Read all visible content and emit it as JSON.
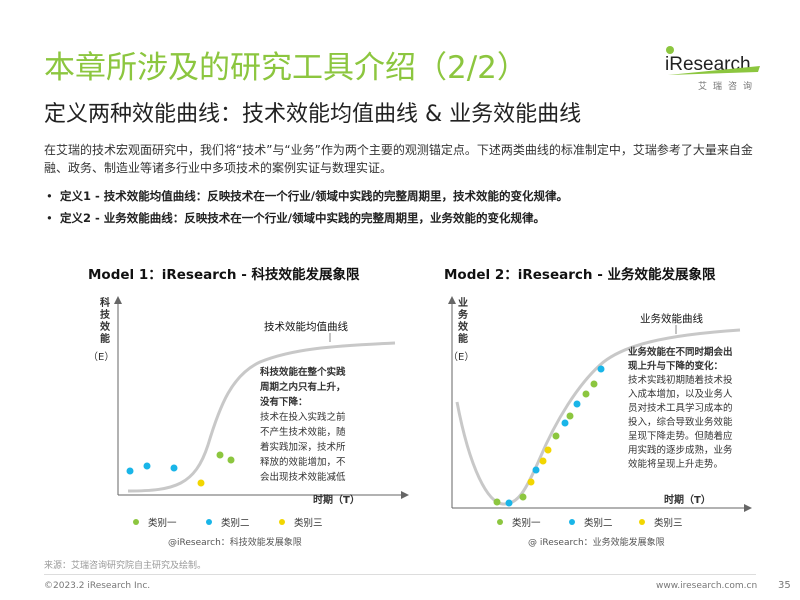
{
  "header": {
    "title": "本章所涉及的研究工具介绍（2/2）",
    "subtitle": "定义两种效能曲线：技术效能均值曲线 & 业务效能曲线"
  },
  "logo": {
    "wordmark": "iResearch",
    "subtitle": "艾瑞咨询",
    "colors": {
      "i_dot": "#8cc63f",
      "text": "#222222",
      "accent": "#8cc63f"
    }
  },
  "intro": "在艾瑞的技术宏观面研究中，我们将“技术”与“业务”作为两个主要的观测锚定点。下述两类曲线的标准制定中，艾瑞参考了大量来自金融、政务、制造业等诸多行业中多项技术的案例实证与数理实证。",
  "definitions": [
    {
      "bullet": "•",
      "text": "定义1 - 技术效能均值曲线：反映技术在一个行业/领域中实践的完整周期里，技术效能的变化规律。"
    },
    {
      "bullet": "•",
      "text": "定义2 - 业务效能曲线：反映技术在一个行业/领域中实践的完整周期里，业务效能的变化规律。"
    }
  ],
  "models": [
    {
      "title": "Model 1：iResearch - 科技效能发展象限",
      "y_axis_label": "科技效能",
      "y_axis_unit": "（E）",
      "x_axis_label": "时期（T）",
      "curve_label": "技术效能均值曲线",
      "annotation_bold": "科技效能在整个实践周期之内只有上升，没有下降：",
      "annotation_body": "技术在投入实践之前不产生技术效能，随着实践加深，技术所释放的效能增加，不会出现技术效能减低的情况。",
      "caption": "@iResearch：科技效能发展象限"
    },
    {
      "title": "Model 2：iResearch - 业务效能发展象限",
      "y_axis_label": "业务效能",
      "y_axis_unit": "（E）",
      "x_axis_label": "时期（T）",
      "curve_label": "业务效能曲线",
      "annotation_bold": "业务效能在不同时期会出现上升与下降的变化：",
      "annotation_body": "技术实践初期随着技术投入成本增加，以及业务人员对技术工具学习成本的投入，综合导致业务效能呈现下降走势。但随着应用实践的逐步成熟，业务效能将呈现上升走势。",
      "caption": "@ iResearch：业务效能发展象限"
    }
  ],
  "legend": [
    {
      "name": "类别一",
      "color": "#8cc63f"
    },
    {
      "name": "类别二",
      "color": "#19b5e8"
    },
    {
      "name": "类别三",
      "color": "#f2d600"
    }
  ],
  "colors": {
    "title_green": "#8cc63f",
    "curve_gray": "#c8c8c8",
    "axis": "#666666"
  },
  "footer": {
    "source": "来源：艾瑞咨询研究院自主研究及绘制。",
    "copyright": "©2023.2 iResearch Inc.",
    "website": "www.iresearch.com.cn",
    "page": "35"
  }
}
